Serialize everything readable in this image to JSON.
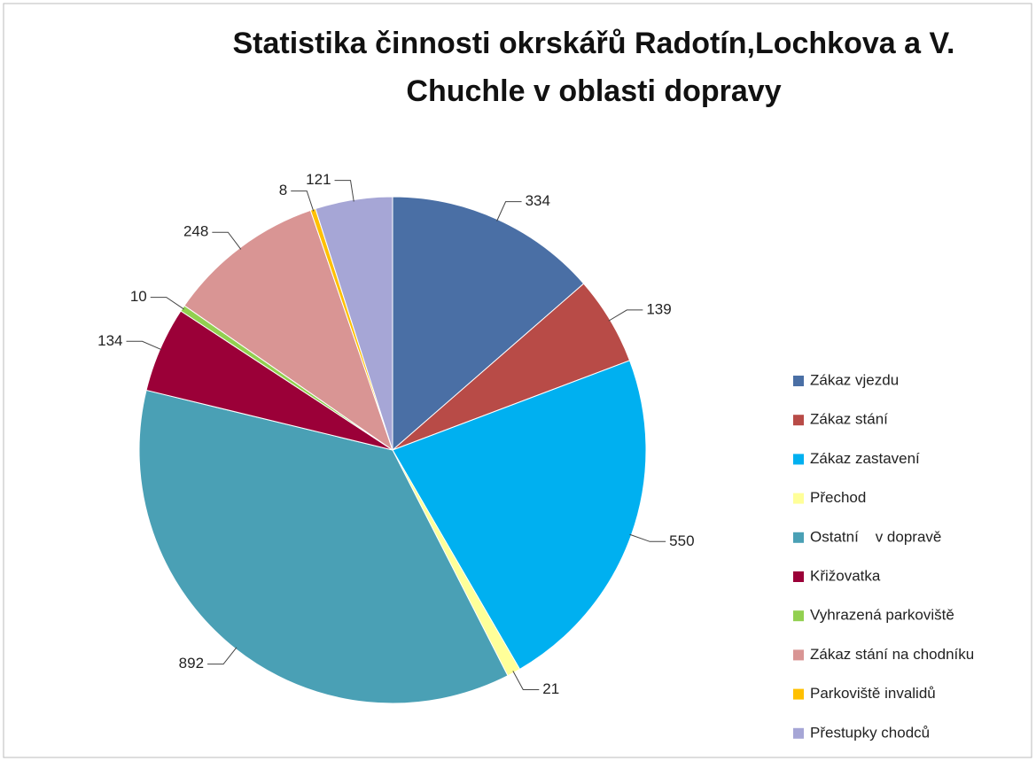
{
  "chart_data": {
    "type": "pie",
    "title": "Statistika činnosti okrskářů Radotín,Lochkova a V. Chuchle v oblasti dopravy",
    "categories": [
      "Zákaz vjezdu",
      "Zákaz stání",
      "Zákaz zastavení",
      "Přechod",
      "Ostatní    v dopravě",
      "Křižovatka",
      "Vyhrazená parkoviště",
      "Zákaz stání na chodníku",
      "Parkoviště invalidů",
      "Přestupky chodců"
    ],
    "values": [
      334,
      139,
      550,
      21,
      892,
      134,
      10,
      248,
      8,
      121
    ],
    "colors": [
      "#4a6fa5",
      "#b84b47",
      "#00b0f0",
      "#ffff99",
      "#4aa0b5",
      "#9b0038",
      "#92d050",
      "#d99594",
      "#ffc000",
      "#a6a6d6"
    ],
    "legend": "right"
  }
}
